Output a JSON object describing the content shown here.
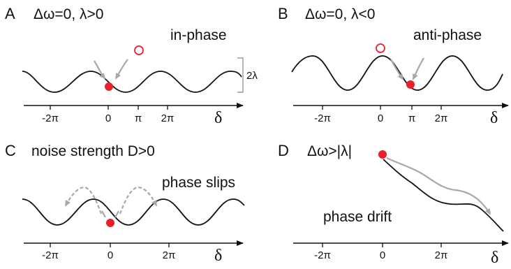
{
  "colors": {
    "curve": "#111111",
    "stable_point": "#e8202a",
    "unstable_point": "#e8202a",
    "arrows": "#a8a8a8"
  },
  "panels": [
    {
      "letter": "A",
      "title": "Δω=0, λ>0",
      "regime": "in-phase",
      "amplitude_label": "2λ",
      "ticks": [
        "-2π",
        "0",
        "π",
        "2π"
      ],
      "axis_variable": "δ"
    },
    {
      "letter": "B",
      "title": "Δω=0, λ<0",
      "regime": "anti-phase",
      "ticks": [
        "-2π",
        "0",
        "π",
        "2π"
      ],
      "axis_variable": "δ"
    },
    {
      "letter": "C",
      "title": "noise strength D>0",
      "regime": "phase slips",
      "ticks": [
        "-2π",
        "0",
        "2π"
      ],
      "axis_variable": "δ"
    },
    {
      "letter": "D",
      "title": "Δω>|λ|",
      "regime": "phase drift",
      "ticks": [
        "-2π",
        "0",
        "2π"
      ],
      "axis_variable": "δ"
    }
  ]
}
